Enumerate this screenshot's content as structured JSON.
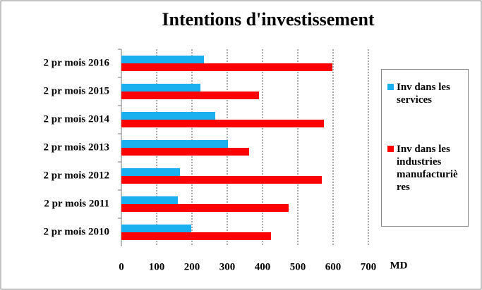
{
  "chart_data": {
    "type": "bar",
    "orientation": "horizontal",
    "title": "Intentions d'investissement",
    "categories": [
      "2 pr mois 2016",
      "2 pr mois 2015",
      "2 pr mois 2014",
      "2 pr mois 2013",
      "2 pr mois 2012",
      "2 pr mois 2011",
      "2 pr mois 2010"
    ],
    "series": [
      {
        "name": "Inv dans les services",
        "color": "#1ab0f0",
        "values": [
          234,
          224,
          266,
          302,
          166,
          160,
          198
        ]
      },
      {
        "name": "Inv dans les industries manufacturières",
        "color": "#ff0000",
        "values": [
          598,
          390,
          574,
          362,
          568,
          474,
          424
        ]
      }
    ],
    "xlabel": "MD",
    "xlim": [
      0,
      700
    ],
    "xticks": [
      0,
      100,
      200,
      300,
      400,
      500,
      600,
      700
    ],
    "grid": true
  }
}
